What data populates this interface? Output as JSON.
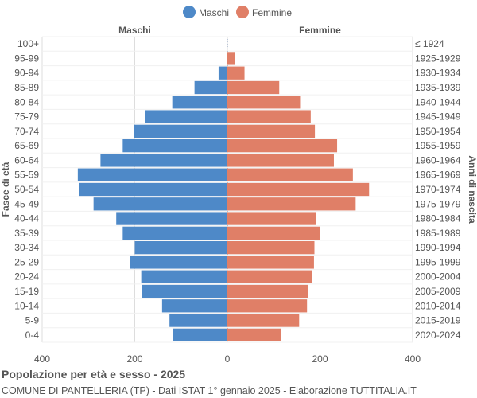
{
  "colors": {
    "male": "#4e89c8",
    "female": "#e07f67",
    "grid": "#dddddd",
    "text": "#555555"
  },
  "chart_data": {
    "type": "bar",
    "orientation": "horizontal-population-pyramid",
    "legend": {
      "position": "top",
      "entries": [
        "Maschi",
        "Femmine"
      ]
    },
    "side_labels": {
      "left": "Maschi",
      "right": "Femmine"
    },
    "ylabel_left": "Fasce di età",
    "ylabel_right": "Anni di nascita",
    "x_ticks": [
      "400",
      "200",
      "0",
      "200",
      "400"
    ],
    "xlim": [
      -400,
      400
    ],
    "grid": true,
    "age_groups": [
      "100+",
      "95-99",
      "90-94",
      "85-89",
      "80-84",
      "75-79",
      "70-74",
      "65-69",
      "60-64",
      "55-59",
      "50-54",
      "45-49",
      "40-44",
      "35-39",
      "30-34",
      "25-29",
      "20-24",
      "15-19",
      "10-14",
      "5-9",
      "0-4"
    ],
    "birth_years": [
      "≤ 1924",
      "1925-1929",
      "1930-1934",
      "1935-1939",
      "1940-1944",
      "1945-1949",
      "1950-1954",
      "1955-1959",
      "1960-1964",
      "1965-1969",
      "1970-1974",
      "1975-1979",
      "1980-1984",
      "1985-1989",
      "1990-1994",
      "1995-1999",
      "2000-2004",
      "2005-2009",
      "2010-2014",
      "2015-2019",
      "2020-2024"
    ],
    "series": [
      {
        "name": "Maschi",
        "values": [
          0,
          1,
          19,
          71,
          119,
          177,
          201,
          226,
          274,
          323,
          321,
          289,
          240,
          226,
          200,
          210,
          186,
          184,
          141,
          125,
          118
        ]
      },
      {
        "name": "Femmine",
        "values": [
          0,
          16,
          37,
          112,
          157,
          180,
          189,
          237,
          230,
          271,
          306,
          277,
          191,
          200,
          188,
          187,
          183,
          175,
          172,
          155,
          115
        ]
      }
    ]
  },
  "footer": {
    "title": "Popolazione per età e sesso - 2025",
    "subtitle": "COMUNE DI PANTELLERIA (TP) - Dati ISTAT 1° gennaio 2025 - Elaborazione TUTTITALIA.IT"
  }
}
